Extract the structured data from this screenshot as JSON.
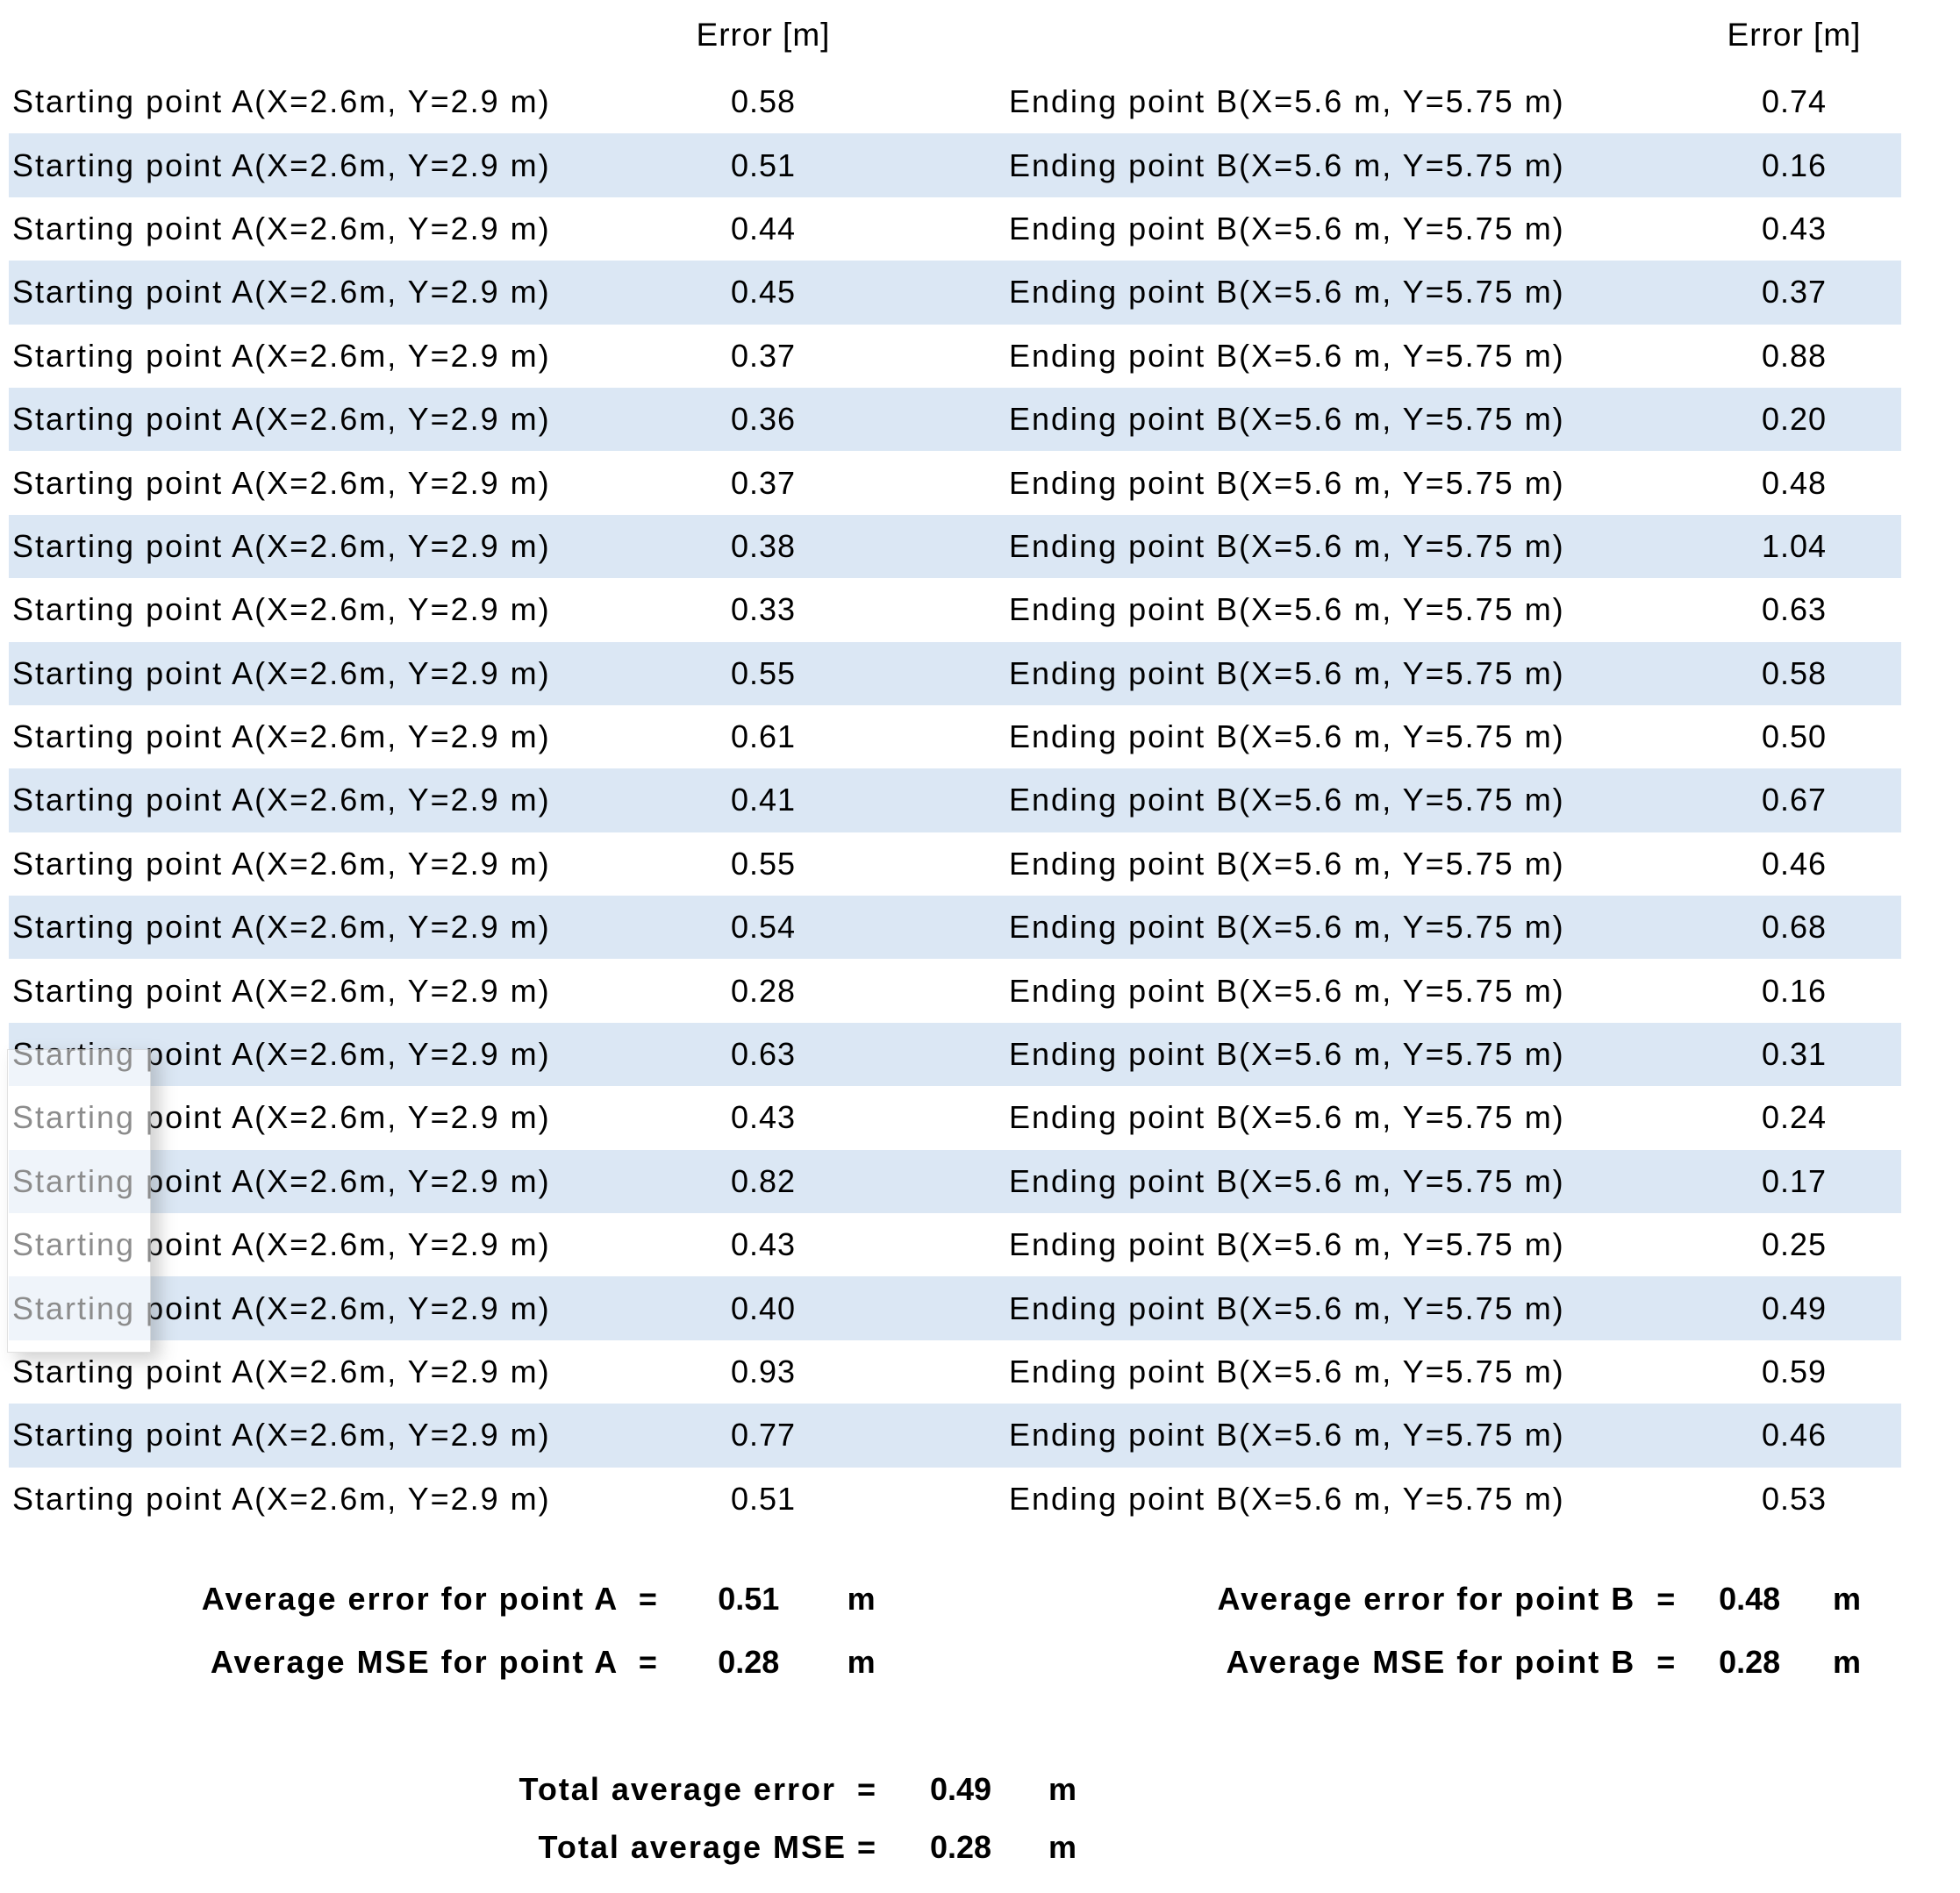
{
  "colors": {
    "band": "#dbe7f4",
    "text": "#000000",
    "background": "#ffffff"
  },
  "table": {
    "error_header": "Error [m]",
    "point_a_label": "Starting point A(X=2.6m, Y=2.9 m)",
    "point_b_label": "Ending point B(X=5.6 m, Y=5.75 m)",
    "rows": [
      {
        "a": "0.58",
        "b": "0.74"
      },
      {
        "a": "0.51",
        "b": "0.16"
      },
      {
        "a": "0.44",
        "b": "0.43"
      },
      {
        "a": "0.45",
        "b": "0.37"
      },
      {
        "a": "0.37",
        "b": "0.88"
      },
      {
        "a": "0.36",
        "b": "0.20"
      },
      {
        "a": "0.37",
        "b": "0.48"
      },
      {
        "a": "0.38",
        "b": "1.04"
      },
      {
        "a": "0.33",
        "b": "0.63"
      },
      {
        "a": "0.55",
        "b": "0.58"
      },
      {
        "a": "0.61",
        "b": "0.50"
      },
      {
        "a": "0.41",
        "b": "0.67"
      },
      {
        "a": "0.55",
        "b": "0.46"
      },
      {
        "a": "0.54",
        "b": "0.68"
      },
      {
        "a": "0.28",
        "b": "0.16"
      },
      {
        "a": "0.63",
        "b": "0.31"
      },
      {
        "a": "0.43",
        "b": "0.24"
      },
      {
        "a": "0.82",
        "b": "0.17"
      },
      {
        "a": "0.43",
        "b": "0.25"
      },
      {
        "a": "0.40",
        "b": "0.49"
      },
      {
        "a": "0.93",
        "b": "0.59"
      },
      {
        "a": "0.77",
        "b": "0.46"
      },
      {
        "a": "0.51",
        "b": "0.53"
      }
    ]
  },
  "summary": {
    "avg_error_a_label": "Average error for point A  =",
    "avg_error_a_value": "0.51",
    "avg_error_a_unit": "m",
    "avg_mse_a_label": "Average MSE for point A  =",
    "avg_mse_a_value": "0.28",
    "avg_mse_a_unit": "m",
    "avg_error_b_label": "Average error for point B  =",
    "avg_error_b_value": "0.48",
    "avg_error_b_unit": "m",
    "avg_mse_b_label": "Average MSE for point B  =",
    "avg_mse_b_value": "0.28",
    "avg_mse_b_unit": "m"
  },
  "totals": {
    "total_avg_error_label": "Total average error  =",
    "total_avg_error_value": "0.49",
    "total_avg_error_unit": "m",
    "total_avg_mse_label": "Total average MSE =",
    "total_avg_mse_value": "0.28",
    "total_avg_mse_unit": "m"
  }
}
